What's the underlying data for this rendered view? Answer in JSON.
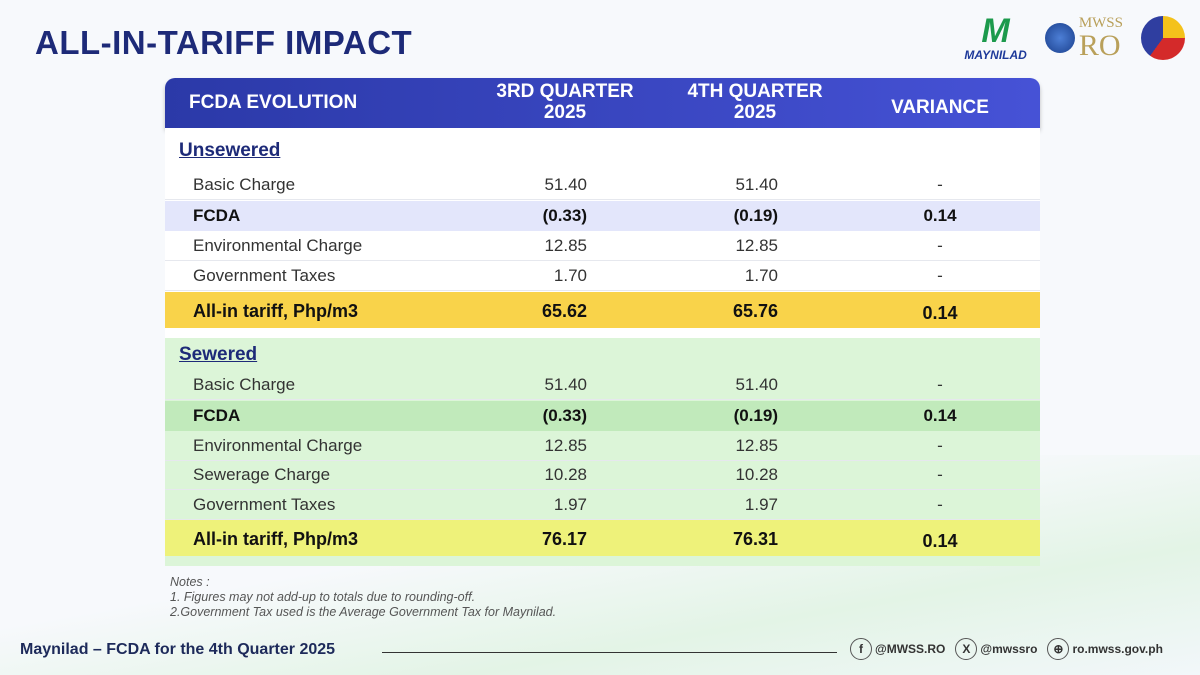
{
  "title": "ALL-IN-TARIFF IMPACT",
  "logos": {
    "maynilad": "MAYNILAD",
    "mwss_top": "MWSS",
    "mwss_bottom": "RO",
    "bagong": "BAGONG PILIPINAS"
  },
  "header": {
    "col1": "FCDA EVOLUTION",
    "col2": "3RD QUARTER 2025",
    "col3": "4TH QUARTER 2025",
    "col4": "VARIANCE"
  },
  "unsewered": {
    "title": "Unsewered",
    "rows": [
      {
        "label": "Basic Charge",
        "q3": "51.40",
        "q4": "51.40",
        "var": "-"
      },
      {
        "label": "FCDA",
        "q3": "(0.33)",
        "q4": "(0.19)",
        "var": "0.14"
      },
      {
        "label": "Environmental Charge",
        "q3": "12.85",
        "q4": "12.85",
        "var": "-"
      },
      {
        "label": "Government Taxes",
        "q3": "1.70",
        "q4": "1.70",
        "var": "-"
      }
    ],
    "total": {
      "label": "All-in tariff, Php/m3",
      "q3": "65.62",
      "q4": "65.76",
      "var": "0.14"
    }
  },
  "sewered": {
    "title": "Sewered",
    "rows": [
      {
        "label": "Basic Charge",
        "q3": "51.40",
        "q4": "51.40",
        "var": "-"
      },
      {
        "label": "FCDA",
        "q3": "(0.33)",
        "q4": "(0.19)",
        "var": "0.14"
      },
      {
        "label": "Environmental Charge",
        "q3": "12.85",
        "q4": "12.85",
        "var": "-"
      },
      {
        "label": "Sewerage Charge",
        "q3": "10.28",
        "q4": "10.28",
        "var": "-"
      },
      {
        "label": "Government Taxes",
        "q3": "1.97",
        "q4": "1.97",
        "var": "-"
      }
    ],
    "total": {
      "label": "All-in tariff, Php/m3",
      "q3": "76.17",
      "q4": "76.31",
      "var": "0.14"
    }
  },
  "notes": {
    "title": "Notes :",
    "n1": "1. Figures may not add-up to totals due to rounding-off.",
    "n2": "2.Government Tax used is the Average Government Tax for Maynilad."
  },
  "footer": {
    "text": "Maynilad – FCDA for the 4th Quarter 2025",
    "facebook": "@MWSS.RO",
    "x": "@mwssro",
    "web": "ro.mwss.gov.ph"
  },
  "colors": {
    "header": "#2b39a8",
    "title": "#1d2a78",
    "unsewered_total": "#f9d34a",
    "sewered_bg": "#dcf5d8",
    "sewered_total": "#eef27a"
  }
}
